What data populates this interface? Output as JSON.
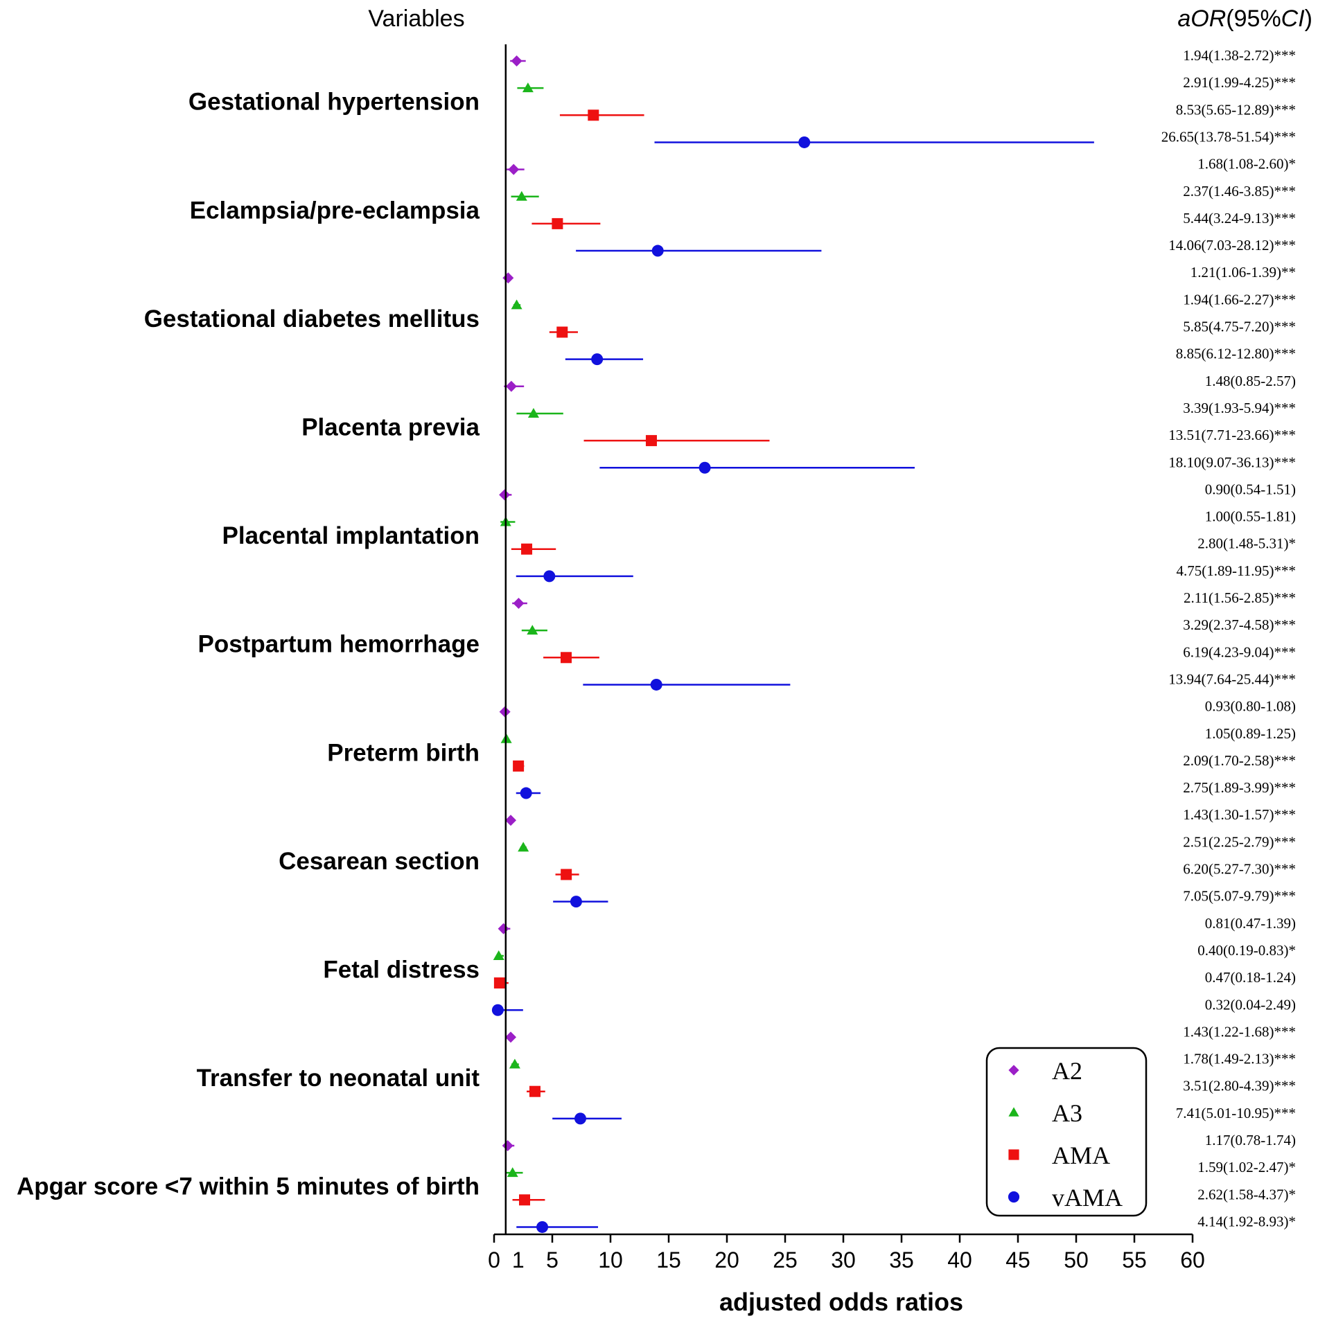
{
  "chart_data": {
    "type": "forest",
    "header_left": "Variables",
    "header_right": {
      "italic": "aOR",
      "normal_open": "(95%",
      "italic_ci": "CI",
      "normal_close": ")"
    },
    "xlabel": "adjusted odds ratios",
    "xlim": [
      0,
      60
    ],
    "reference_line": 1,
    "x_ticks": [
      "0",
      "5",
      "10",
      "15",
      "20",
      "25",
      "30",
      "35",
      "40",
      "45",
      "50",
      "55",
      "60"
    ],
    "extra_tick_label": "1",
    "series": [
      {
        "name": "A2",
        "marker": "diamond",
        "color": "#9B1FC7"
      },
      {
        "name": "A3",
        "marker": "triangle",
        "color": "#1BB51B"
      },
      {
        "name": "AMA",
        "marker": "square",
        "color": "#EE1111"
      },
      {
        "name": "vAMA",
        "marker": "circle",
        "color": "#1111DD"
      }
    ],
    "variables": [
      {
        "label": "Gestational hypertension",
        "rows": [
          {
            "est": 1.94,
            "lo": 1.38,
            "hi": 2.72,
            "text": "1.94(1.38-2.72)***"
          },
          {
            "est": 2.91,
            "lo": 1.99,
            "hi": 4.25,
            "text": "2.91(1.99-4.25)***"
          },
          {
            "est": 8.53,
            "lo": 5.65,
            "hi": 12.89,
            "text": "8.53(5.65-12.89)***"
          },
          {
            "est": 26.65,
            "lo": 13.78,
            "hi": 51.54,
            "text": "26.65(13.78-51.54)***"
          }
        ]
      },
      {
        "label": "Eclampsia/pre-eclampsia",
        "rows": [
          {
            "est": 1.68,
            "lo": 1.08,
            "hi": 2.6,
            "text": "1.68(1.08-2.60)*"
          },
          {
            "est": 2.37,
            "lo": 1.46,
            "hi": 3.85,
            "text": "2.37(1.46-3.85)***"
          },
          {
            "est": 5.44,
            "lo": 3.24,
            "hi": 9.13,
            "text": "5.44(3.24-9.13)***"
          },
          {
            "est": 14.06,
            "lo": 7.03,
            "hi": 28.12,
            "text": "14.06(7.03-28.12)***"
          }
        ]
      },
      {
        "label": "Gestational diabetes mellitus",
        "rows": [
          {
            "est": 1.21,
            "lo": 1.06,
            "hi": 1.39,
            "text": "1.21(1.06-1.39)**"
          },
          {
            "est": 1.94,
            "lo": 1.66,
            "hi": 2.27,
            "text": "1.94(1.66-2.27)***"
          },
          {
            "est": 5.85,
            "lo": 4.75,
            "hi": 7.2,
            "text": "5.85(4.75-7.20)***"
          },
          {
            "est": 8.85,
            "lo": 6.12,
            "hi": 12.8,
            "text": "8.85(6.12-12.80)***"
          }
        ]
      },
      {
        "label": "Placenta previa",
        "rows": [
          {
            "est": 1.48,
            "lo": 0.85,
            "hi": 2.57,
            "text": "1.48(0.85-2.57)"
          },
          {
            "est": 3.39,
            "lo": 1.93,
            "hi": 5.94,
            "text": "3.39(1.93-5.94)***"
          },
          {
            "est": 13.51,
            "lo": 7.71,
            "hi": 23.66,
            "text": "13.51(7.71-23.66)***"
          },
          {
            "est": 18.1,
            "lo": 9.07,
            "hi": 36.13,
            "text": "18.10(9.07-36.13)***"
          }
        ]
      },
      {
        "label": "Placental implantation",
        "rows": [
          {
            "est": 0.9,
            "lo": 0.54,
            "hi": 1.51,
            "text": "0.90(0.54-1.51)"
          },
          {
            "est": 1.0,
            "lo": 0.55,
            "hi": 1.81,
            "text": "1.00(0.55-1.81)"
          },
          {
            "est": 2.8,
            "lo": 1.48,
            "hi": 5.31,
            "text": "2.80(1.48-5.31)*"
          },
          {
            "est": 4.75,
            "lo": 1.89,
            "hi": 11.95,
            "text": "4.75(1.89-11.95)***"
          }
        ]
      },
      {
        "label": "Postpartum hemorrhage",
        "rows": [
          {
            "est": 2.11,
            "lo": 1.56,
            "hi": 2.85,
            "text": "2.11(1.56-2.85)***"
          },
          {
            "est": 3.29,
            "lo": 2.37,
            "hi": 4.58,
            "text": "3.29(2.37-4.58)***"
          },
          {
            "est": 6.19,
            "lo": 4.23,
            "hi": 9.04,
            "text": "6.19(4.23-9.04)***"
          },
          {
            "est": 13.94,
            "lo": 7.64,
            "hi": 25.44,
            "text": "13.94(7.64-25.44)***"
          }
        ]
      },
      {
        "label": "Preterm birth",
        "rows": [
          {
            "est": 0.93,
            "lo": 0.8,
            "hi": 1.08,
            "text": "0.93(0.80-1.08)"
          },
          {
            "est": 1.05,
            "lo": 0.89,
            "hi": 1.25,
            "text": "1.05(0.89-1.25)"
          },
          {
            "est": 2.09,
            "lo": 1.7,
            "hi": 2.58,
            "text": "2.09(1.70-2.58)***"
          },
          {
            "est": 2.75,
            "lo": 1.89,
            "hi": 3.99,
            "text": "2.75(1.89-3.99)***"
          }
        ]
      },
      {
        "label": "Cesarean section",
        "rows": [
          {
            "est": 1.43,
            "lo": 1.3,
            "hi": 1.57,
            "text": "1.43(1.30-1.57)***"
          },
          {
            "est": 2.51,
            "lo": 2.25,
            "hi": 2.79,
            "text": "2.51(2.25-2.79)***"
          },
          {
            "est": 6.2,
            "lo": 5.27,
            "hi": 7.3,
            "text": "6.20(5.27-7.30)***"
          },
          {
            "est": 7.05,
            "lo": 5.07,
            "hi": 9.79,
            "text": "7.05(5.07-9.79)***"
          }
        ]
      },
      {
        "label": "Fetal distress",
        "rows": [
          {
            "est": 0.81,
            "lo": 0.47,
            "hi": 1.39,
            "text": "0.81(0.47-1.39)"
          },
          {
            "est": 0.4,
            "lo": 0.19,
            "hi": 0.83,
            "text": "0.40(0.19-0.83)*"
          },
          {
            "est": 0.47,
            "lo": 0.18,
            "hi": 1.24,
            "text": "0.47(0.18-1.24)"
          },
          {
            "est": 0.32,
            "lo": 0.04,
            "hi": 2.49,
            "text": "0.32(0.04-2.49)"
          }
        ]
      },
      {
        "label": "Transfer to neonatal unit",
        "rows": [
          {
            "est": 1.43,
            "lo": 1.22,
            "hi": 1.68,
            "text": "1.43(1.22-1.68)***"
          },
          {
            "est": 1.78,
            "lo": 1.49,
            "hi": 2.13,
            "text": "1.78(1.49-2.13)***"
          },
          {
            "est": 3.51,
            "lo": 2.8,
            "hi": 4.39,
            "text": "3.51(2.80-4.39)***"
          },
          {
            "est": 7.41,
            "lo": 5.01,
            "hi": 10.95,
            "text": "7.41(5.01-10.95)***"
          }
        ]
      },
      {
        "label": "Apgar score <7 within 5 minutes of birth",
        "rows": [
          {
            "est": 1.17,
            "lo": 0.78,
            "hi": 1.74,
            "text": "1.17(0.78-1.74)"
          },
          {
            "est": 1.59,
            "lo": 1.02,
            "hi": 2.47,
            "text": "1.59(1.02-2.47)*"
          },
          {
            "est": 2.62,
            "lo": 1.58,
            "hi": 4.37,
            "text": "2.62(1.58-4.37)*"
          },
          {
            "est": 4.14,
            "lo": 1.92,
            "hi": 8.93,
            "text": "4.14(1.92-8.93)*"
          }
        ]
      }
    ]
  }
}
